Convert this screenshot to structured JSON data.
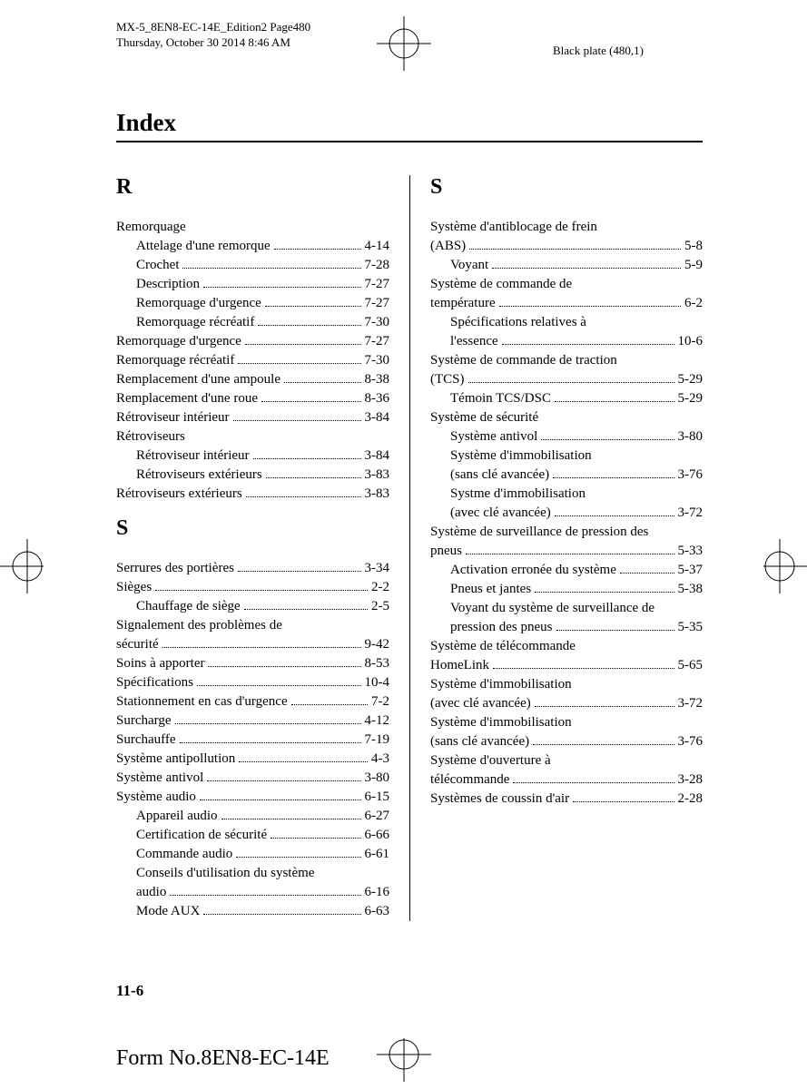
{
  "meta": {
    "line1": "MX-5_8EN8-EC-14E_Edition2 Page480",
    "line2": "Thursday, October 30 2014 8:46 AM",
    "plate": "Black plate (480,1)"
  },
  "title": "Index",
  "letters": {
    "r": "R",
    "s": "S",
    "s2": "S"
  },
  "left": {
    "r": [
      {
        "label": "Remorquage",
        "page": "",
        "heading": true
      },
      {
        "label": "Attelage d'une remorque",
        "page": "4-14",
        "sub": true
      },
      {
        "label": "Crochet",
        "page": "7-28",
        "sub": true
      },
      {
        "label": "Description",
        "page": "7-27",
        "sub": true
      },
      {
        "label": "Remorquage d'urgence",
        "page": "7-27",
        "sub": true
      },
      {
        "label": "Remorquage récréatif",
        "page": "7-30",
        "sub": true
      },
      {
        "label": "Remorquage d'urgence",
        "page": "7-27"
      },
      {
        "label": "Remorquage récréatif",
        "page": "7-30"
      },
      {
        "label": "Remplacement d'une ampoule",
        "page": "8-38"
      },
      {
        "label": "Remplacement d'une roue",
        "page": "8-36"
      },
      {
        "label": "Rétroviseur intérieur",
        "page": "3-84"
      },
      {
        "label": "Rétroviseurs",
        "page": "",
        "heading": true
      },
      {
        "label": "Rétroviseur intérieur",
        "page": "3-84",
        "sub": true
      },
      {
        "label": "Rétroviseurs extérieurs",
        "page": "3-83",
        "sub": true
      },
      {
        "label": "Rétroviseurs extérieurs",
        "page": "3-83"
      }
    ],
    "s": [
      {
        "label": "Serrures des portières",
        "page": "3-34"
      },
      {
        "label": "Sièges",
        "page": "2-2"
      },
      {
        "label": "Chauffage de siège",
        "page": "2-5",
        "sub": true
      },
      {
        "label": "Signalement des problèmes de",
        "page": "",
        "heading": true
      },
      {
        "label": "sécurité",
        "page": "9-42"
      },
      {
        "label": "Soins à apporter",
        "page": "8-53"
      },
      {
        "label": "Spécifications",
        "page": "10-4"
      },
      {
        "label": "Stationnement en cas d'urgence",
        "page": "7-2"
      },
      {
        "label": "Surcharge",
        "page": "4-12"
      },
      {
        "label": "Surchauffe",
        "page": "7-19"
      },
      {
        "label": "Système antipollution",
        "page": "4-3"
      },
      {
        "label": "Système antivol",
        "page": "3-80"
      },
      {
        "label": "Système audio",
        "page": "6-15"
      },
      {
        "label": "Appareil audio",
        "page": "6-27",
        "sub": true
      },
      {
        "label": "Certification de sécurité",
        "page": "6-66",
        "sub": true
      },
      {
        "label": "Commande audio",
        "page": "6-61",
        "sub": true
      },
      {
        "label": "Conseils d'utilisation du système",
        "page": "",
        "heading": true,
        "sub": true
      },
      {
        "label": "audio",
        "page": "6-16",
        "sub": true
      },
      {
        "label": "Mode AUX",
        "page": "6-63",
        "sub": true
      }
    ]
  },
  "right": {
    "s": [
      {
        "label": "Système d'antiblocage de frein",
        "page": "",
        "heading": true
      },
      {
        "label": "(ABS)",
        "page": "5-8"
      },
      {
        "label": "Voyant",
        "page": "5-9",
        "sub": true
      },
      {
        "label": "Système de commande de",
        "page": "",
        "heading": true
      },
      {
        "label": "température",
        "page": "6-2"
      },
      {
        "label": "Spécifications relatives à",
        "page": "",
        "heading": true,
        "sub": true
      },
      {
        "label": "l'essence",
        "page": "10-6",
        "sub": true
      },
      {
        "label": "Système de commande de traction",
        "page": "",
        "heading": true
      },
      {
        "label": "(TCS)",
        "page": "5-29"
      },
      {
        "label": "Témoin TCS/DSC",
        "page": "5-29",
        "sub": true
      },
      {
        "label": "Système de sécurité",
        "page": "",
        "heading": true
      },
      {
        "label": "Système antivol",
        "page": "3-80",
        "sub": true
      },
      {
        "label": "Système d'immobilisation",
        "page": "",
        "heading": true,
        "sub": true
      },
      {
        "label": "(sans clé avancée)",
        "page": "3-76",
        "sub": true
      },
      {
        "label": "Systme d'immobilisation",
        "page": "",
        "heading": true,
        "sub": true
      },
      {
        "label": "(avec clé avancée)",
        "page": "3-72",
        "sub": true
      },
      {
        "label": "Système de surveillance de pression des",
        "page": "",
        "heading": true
      },
      {
        "label": "pneus",
        "page": "5-33"
      },
      {
        "label": "Activation erronée du système",
        "page": "5-37",
        "sub": true
      },
      {
        "label": "Pneus et jantes",
        "page": "5-38",
        "sub": true
      },
      {
        "label": "Voyant du système de surveillance de",
        "page": "",
        "heading": true,
        "sub": true
      },
      {
        "label": "pression des pneus",
        "page": "5-35",
        "sub": true
      },
      {
        "label": "Système de télécommande",
        "page": "",
        "heading": true
      },
      {
        "label": "HomeLink",
        "page": "5-65"
      },
      {
        "label": "Système d'immobilisation",
        "page": "",
        "heading": true
      },
      {
        "label": "(avec clé avancée)",
        "page": "3-72"
      },
      {
        "label": "Système d'immobilisation",
        "page": "",
        "heading": true
      },
      {
        "label": "(sans clé avancée)",
        "page": "3-76"
      },
      {
        "label": "Système d'ouverture à",
        "page": "",
        "heading": true
      },
      {
        "label": "télécommande",
        "page": "3-28"
      },
      {
        "label": "Systèmes de coussin d'air",
        "page": "2-28"
      }
    ]
  },
  "pagenum": "11-6",
  "form": "Form No.8EN8-EC-14E"
}
